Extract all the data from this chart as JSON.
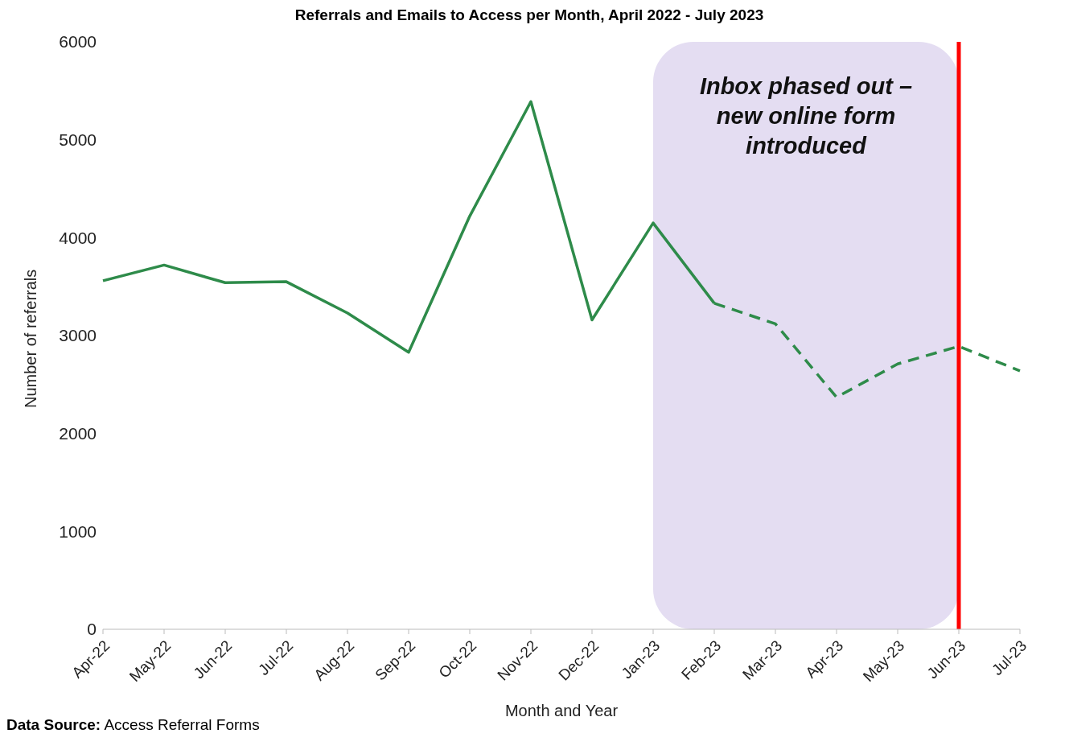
{
  "chart_data": {
    "type": "line",
    "title": "Referrals and Emails to Access per Month, April 2022 - July 2023",
    "xlabel": "Month and Year",
    "ylabel": "Number of referrals",
    "categories": [
      "Apr-22",
      "May-22",
      "Jun-22",
      "Jul-22",
      "Aug-22",
      "Sep-22",
      "Oct-22",
      "Nov-22",
      "Dec-22",
      "Jan-23",
      "Feb-23",
      "Mar-23",
      "Apr-23",
      "May-23",
      "Jun-23",
      "Jul-23"
    ],
    "series": [
      {
        "color": "#2e8b4a",
        "line_style": "solid",
        "values": [
          3560,
          3720,
          3540,
          3550,
          3230,
          2830,
          4220,
          5390,
          3160,
          4150,
          3330,
          null,
          null,
          null,
          null,
          null
        ]
      },
      {
        "color": "#2e8b4a",
        "line_style": "dashed",
        "values": [
          null,
          null,
          null,
          null,
          null,
          null,
          null,
          null,
          null,
          null,
          3330,
          3120,
          2370,
          2710,
          2890,
          2640
        ]
      }
    ],
    "ylim": [
      0,
      6000
    ],
    "yticks": [
      0,
      1000,
      2000,
      3000,
      4000,
      5000,
      6000
    ],
    "grid": false,
    "legend": false,
    "marker": "none",
    "bands": [
      {
        "axis": "x",
        "from": "Jan-23",
        "to": "Jun-23",
        "label": "Inbox phased out – new online form introduced",
        "color": "#e4ddf2"
      }
    ],
    "ref_lines": [
      {
        "axis": "x",
        "value": "Jun-23",
        "color": "#ff0000"
      }
    ],
    "annotations": [
      "Data Source: Access Referral Forms"
    ]
  }
}
